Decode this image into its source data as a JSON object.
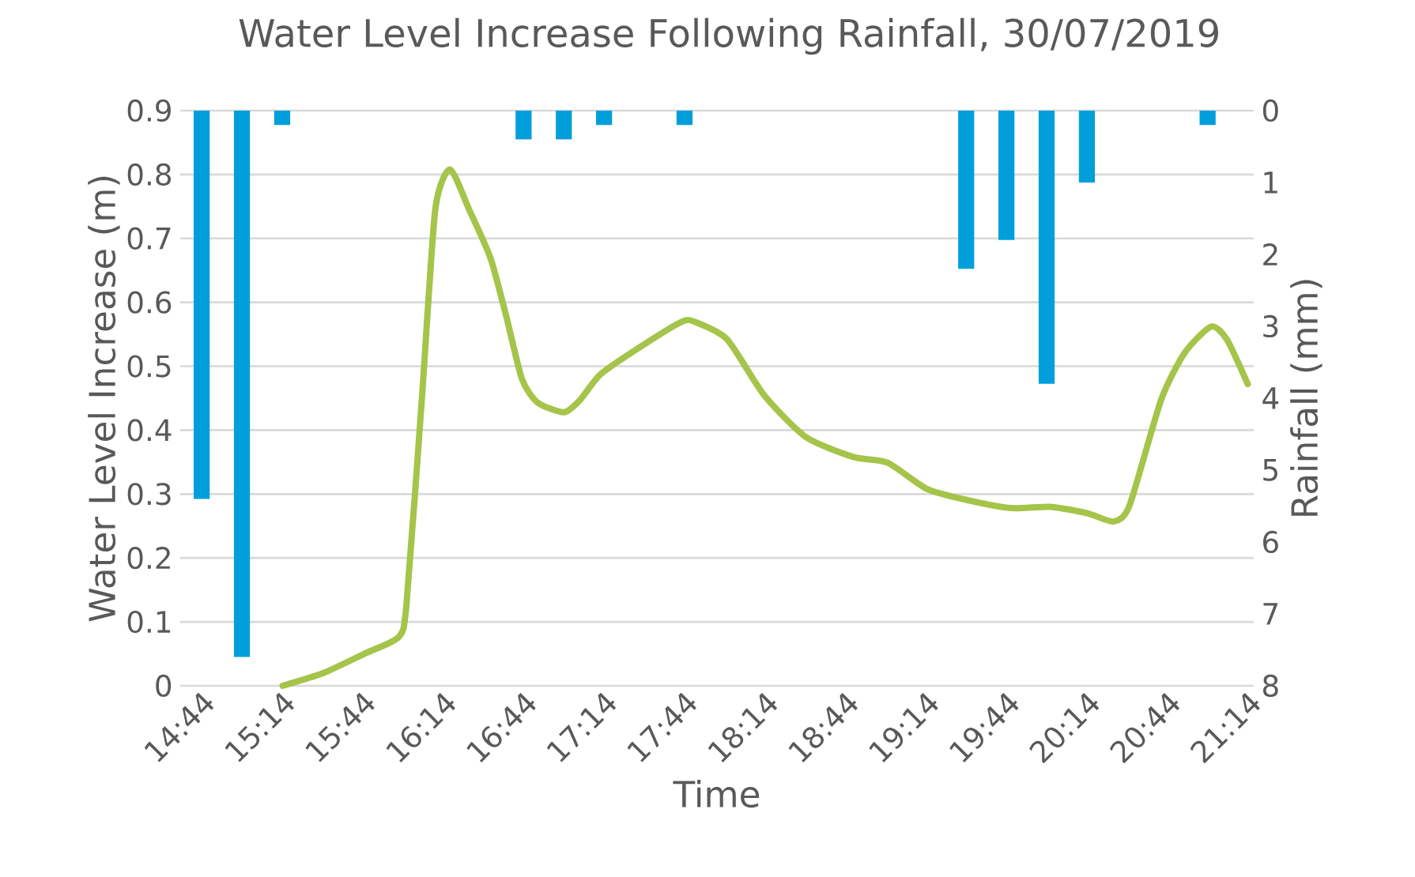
{
  "chart_data": {
    "type": "line",
    "title": "Water Level Increase Following Rainfall, 30/07/2019",
    "xlabel": "Time",
    "ylabel": "Water Level Increase (m)",
    "y2label": "Rainfall (mm)",
    "xlim": [
      14.6,
      21.27
    ],
    "xticks": [
      {
        "value": 14.7333,
        "label": "14:44"
      },
      {
        "value": 15.2333,
        "label": "15:14"
      },
      {
        "value": 15.7333,
        "label": "15:44"
      },
      {
        "value": 16.2333,
        "label": "16:14"
      },
      {
        "value": 16.7333,
        "label": "16:44"
      },
      {
        "value": 17.2333,
        "label": "17:14"
      },
      {
        "value": 17.7333,
        "label": "17:44"
      },
      {
        "value": 18.2333,
        "label": "18:14"
      },
      {
        "value": 18.7333,
        "label": "18:44"
      },
      {
        "value": 19.2333,
        "label": "19:14"
      },
      {
        "value": 19.7333,
        "label": "19:44"
      },
      {
        "value": 20.2333,
        "label": "20:14"
      },
      {
        "value": 20.7333,
        "label": "20:44"
      },
      {
        "value": 21.2333,
        "label": "21:14"
      }
    ],
    "ylim": [
      0,
      0.9
    ],
    "yticks": [
      0,
      0.1,
      0.2,
      0.3,
      0.4,
      0.5,
      0.6,
      0.7,
      0.8,
      0.9
    ],
    "y2lim": [
      8,
      0
    ],
    "y2ticks": [
      0,
      1,
      2,
      3,
      4,
      5,
      6,
      7,
      8
    ],
    "grid": "y",
    "series": [
      {
        "type": "bar",
        "axis": "y2",
        "color": "#009fdb",
        "x": [
          14.7333,
          14.9833,
          15.2333,
          16.7333,
          16.9833,
          17.2333,
          17.7333,
          19.4833,
          19.7333,
          19.9833,
          20.2333,
          20.9833
        ],
        "values": [
          5.4,
          7.6,
          0.2,
          0.4,
          0.4,
          0.2,
          0.2,
          2.2,
          1.8,
          3.8,
          1.0,
          0.2
        ]
      },
      {
        "color": "#a5c44a",
        "x": [
          15.236,
          15.49,
          15.743,
          15.956,
          16.005,
          16.103,
          16.184,
          16.276,
          16.397,
          16.528,
          16.625,
          16.723,
          16.821,
          16.985,
          17.083,
          17.214,
          17.475,
          17.72,
          17.802,
          17.998,
          18.227,
          18.488,
          18.782,
          18.995,
          19.24,
          19.501,
          19.763,
          20.008,
          20.236,
          20.4,
          20.498,
          20.694,
          20.841,
          21.005,
          21.103,
          21.233
        ],
        "values": [
          0.0,
          0.02,
          0.05,
          0.076,
          0.125,
          0.455,
          0.744,
          0.808,
          0.744,
          0.669,
          0.579,
          0.48,
          0.443,
          0.428,
          0.447,
          0.488,
          0.533,
          0.57,
          0.569,
          0.542,
          0.455,
          0.389,
          0.358,
          0.349,
          0.308,
          0.29,
          0.278,
          0.28,
          0.27,
          0.257,
          0.282,
          0.447,
          0.521,
          0.562,
          0.542,
          0.472
        ]
      }
    ]
  }
}
